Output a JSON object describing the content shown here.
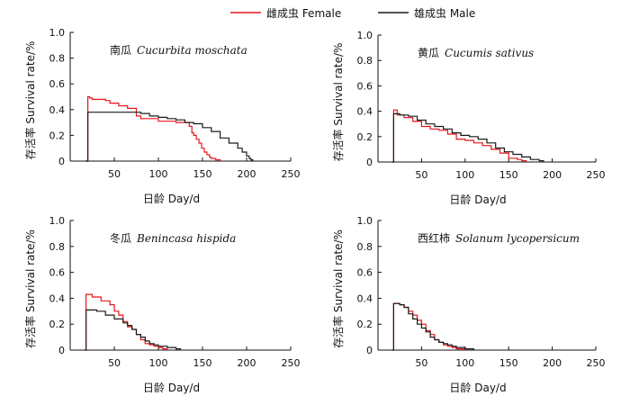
{
  "legend": {
    "female_label": "雌成虫 Female",
    "male_label": "雄成虫 Male",
    "female_color": "#e8141b",
    "male_color": "#1a1a1a"
  },
  "chart_data": [
    {
      "type": "line",
      "title_cn": "南瓜",
      "title_latin": "Cucurbita moschata",
      "ylabel": "存活率  Survival rate/%",
      "xlabel": "日龄  Day/d",
      "xlim": [
        0,
        250
      ],
      "ylim": [
        0,
        1.0
      ],
      "xticks": [
        50,
        100,
        150,
        200,
        250
      ],
      "yticks": [
        0,
        0.2,
        0.4,
        0.6,
        0.8,
        1.0
      ],
      "series": [
        {
          "name": "雌成虫 Female",
          "x": [
            17,
            20,
            22,
            25,
            40,
            45,
            55,
            65,
            75,
            80,
            90,
            100,
            110,
            120,
            130,
            135,
            138,
            140,
            143,
            146,
            149,
            152,
            155,
            158,
            160,
            165,
            170
          ],
          "y": [
            0,
            0.5,
            0.49,
            0.48,
            0.47,
            0.45,
            0.43,
            0.41,
            0.35,
            0.33,
            0.33,
            0.31,
            0.31,
            0.3,
            0.3,
            0.27,
            0.22,
            0.2,
            0.17,
            0.14,
            0.1,
            0.07,
            0.05,
            0.03,
            0.02,
            0.01,
            0
          ]
        },
        {
          "name": "雄成虫 Male",
          "x": [
            17,
            20,
            80,
            90,
            100,
            110,
            120,
            130,
            140,
            150,
            160,
            170,
            180,
            185,
            190,
            195,
            200,
            203,
            205,
            207
          ],
          "y": [
            0,
            0.38,
            0.37,
            0.35,
            0.34,
            0.33,
            0.32,
            0.3,
            0.29,
            0.26,
            0.23,
            0.18,
            0.14,
            0.14,
            0.1,
            0.07,
            0.04,
            0.02,
            0.01,
            0
          ]
        }
      ]
    },
    {
      "type": "line",
      "title_cn": "黄瓜",
      "title_latin": "Cucumis sativus",
      "ylabel": "存活率  Survival rate/%",
      "xlabel": "日龄  Day/d",
      "xlim": [
        0,
        250
      ],
      "ylim": [
        0,
        1.0
      ],
      "xticks": [
        50,
        100,
        150,
        200,
        250
      ],
      "yticks": [
        0,
        0.2,
        0.4,
        0.6,
        0.8,
        1.0
      ],
      "series": [
        {
          "name": "雌成虫 Female",
          "x": [
            16,
            18,
            22,
            30,
            40,
            50,
            60,
            70,
            80,
            90,
            100,
            110,
            120,
            130,
            140,
            150,
            160,
            165,
            170
          ],
          "y": [
            0,
            0.41,
            0.37,
            0.35,
            0.32,
            0.28,
            0.26,
            0.25,
            0.22,
            0.18,
            0.17,
            0.15,
            0.13,
            0.1,
            0.07,
            0.03,
            0.02,
            0.01,
            0
          ]
        },
        {
          "name": "雄成虫 Male",
          "x": [
            16,
            18,
            25,
            35,
            45,
            55,
            65,
            75,
            85,
            95,
            105,
            115,
            125,
            135,
            145,
            155,
            165,
            175,
            185,
            190
          ],
          "y": [
            0,
            0.38,
            0.37,
            0.36,
            0.33,
            0.3,
            0.28,
            0.26,
            0.23,
            0.21,
            0.2,
            0.18,
            0.15,
            0.11,
            0.08,
            0.06,
            0.04,
            0.02,
            0.01,
            0
          ]
        }
      ]
    },
    {
      "type": "line",
      "title_cn": "冬瓜",
      "title_latin": "Benincasa hispida",
      "ylabel": "存活率  Survival rate/%",
      "xlabel": "日龄  Day/d",
      "xlim": [
        0,
        250
      ],
      "ylim": [
        0,
        1.0
      ],
      "xticks": [
        50,
        100,
        150,
        200,
        250
      ],
      "yticks": [
        0,
        0.2,
        0.4,
        0.6,
        0.8,
        1.0
      ],
      "series": [
        {
          "name": "雌成虫 Female",
          "x": [
            16,
            18,
            25,
            35,
            45,
            50,
            55,
            60,
            65,
            70,
            75,
            80,
            85,
            90,
            95,
            100,
            105,
            110
          ],
          "y": [
            0,
            0.43,
            0.41,
            0.38,
            0.35,
            0.3,
            0.27,
            0.22,
            0.18,
            0.16,
            0.12,
            0.08,
            0.05,
            0.04,
            0.03,
            0.02,
            0.01,
            0
          ]
        },
        {
          "name": "雄成虫 Male",
          "x": [
            16,
            18,
            30,
            40,
            50,
            60,
            65,
            70,
            75,
            80,
            85,
            90,
            95,
            100,
            110,
            120,
            125
          ],
          "y": [
            0,
            0.31,
            0.3,
            0.27,
            0.24,
            0.21,
            0.19,
            0.16,
            0.12,
            0.1,
            0.07,
            0.05,
            0.04,
            0.03,
            0.02,
            0.01,
            0
          ]
        }
      ]
    },
    {
      "type": "line",
      "title_cn": "西红柿",
      "title_latin": "Solanum lycopersicum",
      "ylabel": "存活率  Survival rate/%",
      "xlabel": "日龄  Day/d",
      "xlim": [
        0,
        250
      ],
      "ylim": [
        0,
        1.0
      ],
      "xticks": [
        50,
        100,
        150,
        200,
        250
      ],
      "yticks": [
        0,
        0.2,
        0.4,
        0.6,
        0.8,
        1.0
      ],
      "series": [
        {
          "name": "雌成虫 Female",
          "x": [
            16,
            18,
            25,
            30,
            35,
            40,
            45,
            50,
            55,
            60,
            65,
            70,
            75,
            80,
            85,
            90,
            95,
            100
          ],
          "y": [
            0,
            0.36,
            0.35,
            0.33,
            0.3,
            0.27,
            0.23,
            0.2,
            0.15,
            0.12,
            0.08,
            0.06,
            0.04,
            0.03,
            0.02,
            0.01,
            0.01,
            0
          ]
        },
        {
          "name": "雄成虫 Male",
          "x": [
            16,
            18,
            25,
            30,
            35,
            40,
            45,
            50,
            55,
            60,
            65,
            70,
            75,
            80,
            85,
            90,
            100,
            110
          ],
          "y": [
            0,
            0.36,
            0.35,
            0.33,
            0.28,
            0.24,
            0.2,
            0.17,
            0.14,
            0.1,
            0.08,
            0.06,
            0.05,
            0.04,
            0.03,
            0.02,
            0.01,
            0
          ]
        }
      ]
    }
  ]
}
